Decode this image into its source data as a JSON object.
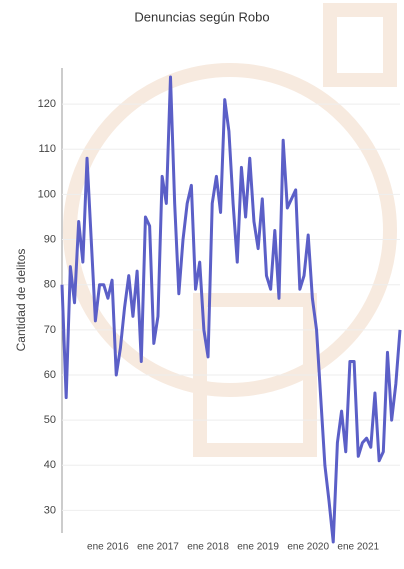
{
  "chart_data": {
    "type": "line",
    "title": "Denuncias según Robo",
    "y_label": "Cantidad de delitos",
    "categories": [
      null,
      null,
      null,
      null,
      null,
      null,
      null,
      null,
      null,
      null,
      null,
      "ene 2016",
      null,
      null,
      null,
      null,
      null,
      null,
      null,
      null,
      null,
      null,
      null,
      "ene 2017",
      null,
      null,
      null,
      null,
      null,
      null,
      null,
      null,
      null,
      null,
      null,
      "ene 2018",
      null,
      null,
      null,
      null,
      null,
      null,
      null,
      null,
      null,
      null,
      null,
      "ene 2019",
      null,
      null,
      null,
      null,
      null,
      null,
      null,
      null,
      null,
      null,
      null,
      "ene 2020",
      null,
      null,
      null,
      null,
      null,
      null,
      null,
      null,
      null,
      null,
      null,
      "ene 2021",
      null,
      null,
      null,
      null,
      null,
      null,
      null,
      null,
      null,
      null
    ],
    "series": [
      {
        "color": "#5b5fc7",
        "values": [
          80,
          55,
          84,
          76,
          94,
          85,
          108,
          90,
          72,
          80,
          80,
          77,
          81,
          60,
          66,
          75,
          82,
          73,
          83,
          63,
          95,
          93,
          67,
          73,
          104,
          98,
          126,
          98,
          78,
          90,
          98,
          102,
          79,
          85,
          70,
          64,
          98,
          104,
          96,
          121,
          114,
          98,
          85,
          106,
          95,
          108,
          94,
          88,
          99,
          82,
          79,
          92,
          77,
          112,
          97,
          99,
          101,
          79,
          82,
          91,
          77,
          70,
          55,
          40,
          32,
          23,
          45,
          52,
          43,
          63,
          63,
          42,
          45,
          46,
          44,
          56,
          41,
          43,
          65,
          50,
          58,
          70
        ]
      }
    ],
    "ylim": [
      25,
      128
    ],
    "yticks": [
      30,
      40,
      50,
      60,
      70,
      80,
      90,
      100,
      110,
      120
    ],
    "grid": true
  }
}
